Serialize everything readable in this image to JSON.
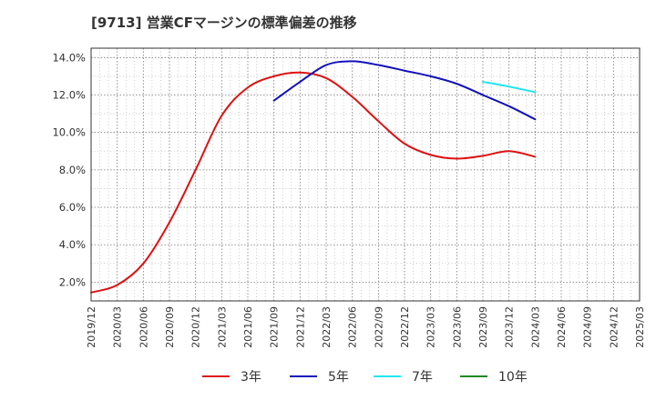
{
  "chart_data": {
    "type": "line",
    "title": "[9713]  営業CFマージンの標準偏差の推移",
    "xlabel": "",
    "ylabel": "",
    "ylim": [
      1.0,
      14.5
    ],
    "grid": true,
    "legend_position": "bottom",
    "x_ticks": [
      "2019/12",
      "2020/03",
      "2020/06",
      "2020/09",
      "2020/12",
      "2021/03",
      "2021/06",
      "2021/09",
      "2021/12",
      "2022/03",
      "2022/06",
      "2022/09",
      "2022/12",
      "2023/03",
      "2023/06",
      "2023/09",
      "2023/12",
      "2024/03",
      "2024/06",
      "2024/09",
      "2024/12",
      "2025/03"
    ],
    "y_ticks": [
      "2.0%",
      "4.0%",
      "6.0%",
      "8.0%",
      "10.0%",
      "12.0%",
      "14.0%"
    ],
    "y_tick_values": [
      2,
      4,
      6,
      8,
      10,
      12,
      14
    ],
    "series": [
      {
        "name": "3年",
        "color": "#dd1111",
        "points": [
          [
            "2019/12",
            1.45
          ],
          [
            "2020/03",
            1.85
          ],
          [
            "2020/06",
            3.0
          ],
          [
            "2020/09",
            5.2
          ],
          [
            "2020/12",
            8.0
          ],
          [
            "2021/03",
            10.9
          ],
          [
            "2021/06",
            12.4
          ],
          [
            "2021/09",
            13.0
          ],
          [
            "2021/12",
            13.2
          ],
          [
            "2022/03",
            12.9
          ],
          [
            "2022/06",
            11.9
          ],
          [
            "2022/09",
            10.6
          ],
          [
            "2022/12",
            9.4
          ],
          [
            "2023/03",
            8.8
          ],
          [
            "2023/06",
            8.6
          ],
          [
            "2023/09",
            8.75
          ],
          [
            "2023/12",
            9.0
          ],
          [
            "2024/03",
            8.7
          ]
        ]
      },
      {
        "name": "5年",
        "color": "#1111bb",
        "points": [
          [
            "2021/09",
            11.7
          ],
          [
            "2021/12",
            12.7
          ],
          [
            "2022/03",
            13.6
          ],
          [
            "2022/06",
            13.8
          ],
          [
            "2022/09",
            13.6
          ],
          [
            "2022/12",
            13.3
          ],
          [
            "2023/03",
            13.0
          ],
          [
            "2023/06",
            12.6
          ],
          [
            "2023/09",
            12.0
          ],
          [
            "2023/12",
            11.4
          ],
          [
            "2024/03",
            10.7
          ]
        ]
      },
      {
        "name": "7年",
        "color": "#22e5ee",
        "points": [
          [
            "2023/09",
            12.7
          ],
          [
            "2023/12",
            12.45
          ],
          [
            "2024/03",
            12.15
          ]
        ]
      },
      {
        "name": "10年",
        "color": "#228822",
        "points": []
      }
    ]
  }
}
